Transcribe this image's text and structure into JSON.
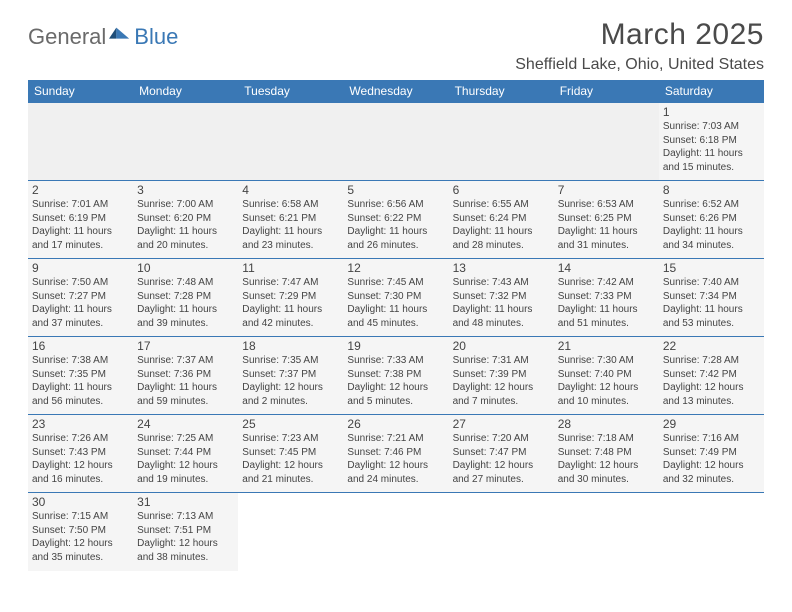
{
  "logo": {
    "word1": "General",
    "word2": "Blue"
  },
  "title": "March 2025",
  "subtitle": "Sheffield Lake, Ohio, United States",
  "accent_color": "#3a78b5",
  "day_headers": [
    "Sunday",
    "Monday",
    "Tuesday",
    "Wednesday",
    "Thursday",
    "Friday",
    "Saturday"
  ],
  "weeks": [
    [
      null,
      null,
      null,
      null,
      null,
      null,
      {
        "n": "1",
        "sr": "7:03 AM",
        "ss": "6:18 PM",
        "dl": "11 hours and 15 minutes."
      }
    ],
    [
      {
        "n": "2",
        "sr": "7:01 AM",
        "ss": "6:19 PM",
        "dl": "11 hours and 17 minutes."
      },
      {
        "n": "3",
        "sr": "7:00 AM",
        "ss": "6:20 PM",
        "dl": "11 hours and 20 minutes."
      },
      {
        "n": "4",
        "sr": "6:58 AM",
        "ss": "6:21 PM",
        "dl": "11 hours and 23 minutes."
      },
      {
        "n": "5",
        "sr": "6:56 AM",
        "ss": "6:22 PM",
        "dl": "11 hours and 26 minutes."
      },
      {
        "n": "6",
        "sr": "6:55 AM",
        "ss": "6:24 PM",
        "dl": "11 hours and 28 minutes."
      },
      {
        "n": "7",
        "sr": "6:53 AM",
        "ss": "6:25 PM",
        "dl": "11 hours and 31 minutes."
      },
      {
        "n": "8",
        "sr": "6:52 AM",
        "ss": "6:26 PM",
        "dl": "11 hours and 34 minutes."
      }
    ],
    [
      {
        "n": "9",
        "sr": "7:50 AM",
        "ss": "7:27 PM",
        "dl": "11 hours and 37 minutes."
      },
      {
        "n": "10",
        "sr": "7:48 AM",
        "ss": "7:28 PM",
        "dl": "11 hours and 39 minutes."
      },
      {
        "n": "11",
        "sr": "7:47 AM",
        "ss": "7:29 PM",
        "dl": "11 hours and 42 minutes."
      },
      {
        "n": "12",
        "sr": "7:45 AM",
        "ss": "7:30 PM",
        "dl": "11 hours and 45 minutes."
      },
      {
        "n": "13",
        "sr": "7:43 AM",
        "ss": "7:32 PM",
        "dl": "11 hours and 48 minutes."
      },
      {
        "n": "14",
        "sr": "7:42 AM",
        "ss": "7:33 PM",
        "dl": "11 hours and 51 minutes."
      },
      {
        "n": "15",
        "sr": "7:40 AM",
        "ss": "7:34 PM",
        "dl": "11 hours and 53 minutes."
      }
    ],
    [
      {
        "n": "16",
        "sr": "7:38 AM",
        "ss": "7:35 PM",
        "dl": "11 hours and 56 minutes."
      },
      {
        "n": "17",
        "sr": "7:37 AM",
        "ss": "7:36 PM",
        "dl": "11 hours and 59 minutes."
      },
      {
        "n": "18",
        "sr": "7:35 AM",
        "ss": "7:37 PM",
        "dl": "12 hours and 2 minutes."
      },
      {
        "n": "19",
        "sr": "7:33 AM",
        "ss": "7:38 PM",
        "dl": "12 hours and 5 minutes."
      },
      {
        "n": "20",
        "sr": "7:31 AM",
        "ss": "7:39 PM",
        "dl": "12 hours and 7 minutes."
      },
      {
        "n": "21",
        "sr": "7:30 AM",
        "ss": "7:40 PM",
        "dl": "12 hours and 10 minutes."
      },
      {
        "n": "22",
        "sr": "7:28 AM",
        "ss": "7:42 PM",
        "dl": "12 hours and 13 minutes."
      }
    ],
    [
      {
        "n": "23",
        "sr": "7:26 AM",
        "ss": "7:43 PM",
        "dl": "12 hours and 16 minutes."
      },
      {
        "n": "24",
        "sr": "7:25 AM",
        "ss": "7:44 PM",
        "dl": "12 hours and 19 minutes."
      },
      {
        "n": "25",
        "sr": "7:23 AM",
        "ss": "7:45 PM",
        "dl": "12 hours and 21 minutes."
      },
      {
        "n": "26",
        "sr": "7:21 AM",
        "ss": "7:46 PM",
        "dl": "12 hours and 24 minutes."
      },
      {
        "n": "27",
        "sr": "7:20 AM",
        "ss": "7:47 PM",
        "dl": "12 hours and 27 minutes."
      },
      {
        "n": "28",
        "sr": "7:18 AM",
        "ss": "7:48 PM",
        "dl": "12 hours and 30 minutes."
      },
      {
        "n": "29",
        "sr": "7:16 AM",
        "ss": "7:49 PM",
        "dl": "12 hours and 32 minutes."
      }
    ],
    [
      {
        "n": "30",
        "sr": "7:15 AM",
        "ss": "7:50 PM",
        "dl": "12 hours and 35 minutes."
      },
      {
        "n": "31",
        "sr": "7:13 AM",
        "ss": "7:51 PM",
        "dl": "12 hours and 38 minutes."
      },
      null,
      null,
      null,
      null,
      null
    ]
  ],
  "labels": {
    "sunrise": "Sunrise:",
    "sunset": "Sunset:",
    "daylight": "Daylight:"
  }
}
